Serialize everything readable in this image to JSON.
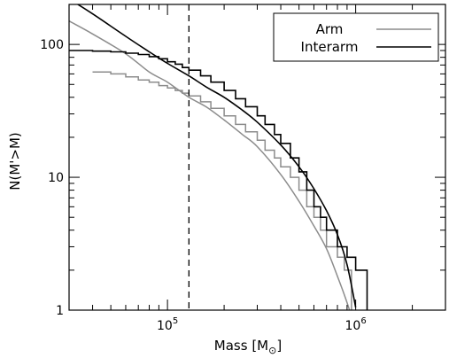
{
  "chart_data": {
    "type": "line",
    "title": "",
    "xlabel": "Mass [M",
    "xlabel_sub": "⊙",
    "xlabel_close": "]",
    "ylabel": "N(M'>M)",
    "xscale": "log",
    "yscale": "log",
    "xlim": [
      30000,
      3000000
    ],
    "ylim": [
      1,
      200
    ],
    "x_ticks": [
      {
        "value": 100000,
        "base": "10",
        "exp": "5"
      },
      {
        "value": 1000000,
        "base": "10",
        "exp": "6"
      }
    ],
    "y_ticks": [
      {
        "value": 1,
        "label": "1"
      },
      {
        "value": 10,
        "label": "10"
      },
      {
        "value": 100,
        "label": "100"
      }
    ],
    "vline": 130000,
    "legend": {
      "position": "top-right",
      "entries": [
        {
          "label": "Arm",
          "color": "#8c8c8c"
        },
        {
          "label": "Interarm",
          "color": "#000000"
        }
      ]
    },
    "series": [
      {
        "name": "Arm",
        "kind": "step",
        "color": "#8c8c8c",
        "x": [
          40000,
          50000,
          60000,
          70000,
          80000,
          90000,
          100000,
          110000,
          120000,
          130000,
          150000,
          170000,
          200000,
          230000,
          260000,
          300000,
          330000,
          370000,
          400000,
          450000,
          500000,
          550000,
          600000,
          650000,
          700000,
          750000,
          800000,
          870000,
          950000
        ],
        "y": [
          62,
          60,
          57,
          54,
          52,
          49,
          47,
          45,
          43,
          41,
          37,
          33,
          29,
          25,
          22,
          19,
          16,
          14,
          12,
          10,
          8,
          6,
          5,
          4,
          3,
          3,
          2.5,
          2,
          1
        ]
      },
      {
        "name": "Arm fit",
        "kind": "fit",
        "color": "#8c8c8c",
        "x": [
          30000,
          40000,
          60000,
          80000,
          100000,
          130000,
          160000,
          200000,
          250000,
          300000,
          400000,
          500000,
          600000,
          700000,
          800000,
          880000,
          950000
        ],
        "y": [
          150,
          120,
          85,
          62,
          52,
          40,
          34,
          27,
          21,
          17,
          10.5,
          6.6,
          4.3,
          2.9,
          1.8,
          1.25,
          0.9
        ]
      },
      {
        "name": "Interarm",
        "kind": "step",
        "color": "#000000",
        "x": [
          30000,
          40000,
          50000,
          60000,
          70000,
          80000,
          90000,
          100000,
          110000,
          120000,
          130000,
          150000,
          170000,
          200000,
          230000,
          260000,
          300000,
          330000,
          370000,
          400000,
          450000,
          500000,
          550000,
          600000,
          650000,
          700000,
          800000,
          900000,
          1000000,
          1150000
        ],
        "y": [
          90,
          89,
          88,
          86,
          84,
          81,
          78,
          74,
          71,
          67,
          64,
          58,
          52,
          45,
          39,
          34,
          29,
          25,
          21,
          18,
          14,
          11,
          8,
          6,
          5,
          4,
          3,
          2.5,
          2,
          1
        ]
      },
      {
        "name": "Interarm fit",
        "kind": "fit",
        "color": "#000000",
        "x": [
          30000,
          40000,
          60000,
          80000,
          100000,
          130000,
          160000,
          200000,
          250000,
          300000,
          400000,
          500000,
          600000,
          700000,
          800000,
          900000,
          1000000
        ],
        "y": [
          220,
          170,
          115,
          88,
          72,
          58,
          48,
          40,
          32,
          26,
          17.5,
          12,
          8.2,
          5.6,
          3.7,
          2.2,
          1.05
        ]
      }
    ]
  }
}
